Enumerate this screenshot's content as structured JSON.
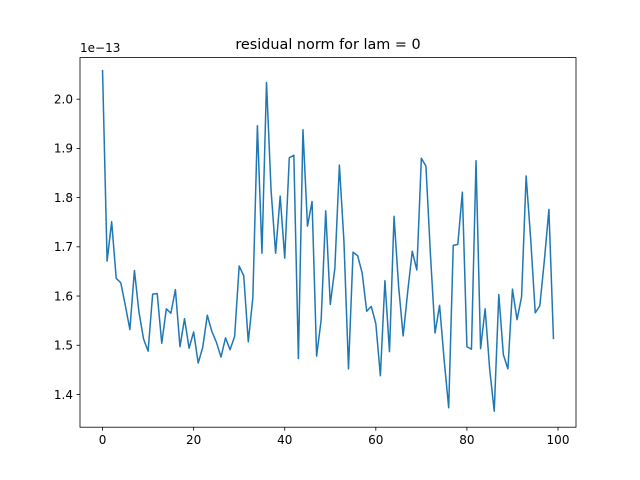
{
  "chart_data": {
    "type": "line",
    "title": "residual norm for lam = 0",
    "xlabel": "",
    "ylabel": "",
    "offset_label": "1e−13",
    "xlim": [
      -4.95,
      103.95
    ],
    "ylim": [
      1.3335,
      2.0845
    ],
    "xticks": [
      0,
      20,
      40,
      60,
      80,
      100
    ],
    "xtick_labels": [
      "0",
      "20",
      "40",
      "60",
      "80",
      "100"
    ],
    "yticks": [
      1.4,
      1.5,
      1.6,
      1.7,
      1.8,
      1.9,
      2.0
    ],
    "ytick_labels": [
      "1.4",
      "1.5",
      "1.6",
      "1.7",
      "1.8",
      "1.9",
      "2.0"
    ],
    "grid": false,
    "legend": "none",
    "series": [
      {
        "color": "#1f77b4",
        "x": [
          0,
          1,
          2,
          3,
          4,
          5,
          6,
          7,
          8,
          9,
          10,
          11,
          12,
          13,
          14,
          15,
          16,
          17,
          18,
          19,
          20,
          21,
          22,
          23,
          24,
          25,
          26,
          27,
          28,
          29,
          30,
          31,
          32,
          33,
          34,
          35,
          36,
          37,
          38,
          39,
          40,
          41,
          42,
          43,
          44,
          45,
          46,
          47,
          48,
          49,
          50,
          51,
          52,
          53,
          54,
          55,
          56,
          57,
          58,
          59,
          60,
          61,
          62,
          63,
          64,
          65,
          66,
          67,
          68,
          69,
          70,
          71,
          72,
          73,
          74,
          75,
          76,
          77,
          78,
          79,
          80,
          81,
          82,
          83,
          84,
          85,
          86,
          87,
          88,
          89,
          90,
          91,
          92,
          93,
          94,
          95,
          96,
          97,
          98,
          99
        ],
        "y": [
          2.058,
          1.671,
          1.751,
          1.636,
          1.627,
          1.581,
          1.532,
          1.652,
          1.567,
          1.513,
          1.488,
          1.604,
          1.605,
          1.504,
          1.574,
          1.565,
          1.613,
          1.497,
          1.554,
          1.494,
          1.527,
          1.464,
          1.496,
          1.561,
          1.528,
          1.506,
          1.476,
          1.515,
          1.491,
          1.518,
          1.661,
          1.641,
          1.507,
          1.597,
          1.946,
          1.687,
          2.034,
          1.815,
          1.687,
          1.803,
          1.677,
          1.881,
          1.886,
          1.473,
          1.938,
          1.742,
          1.792,
          1.478,
          1.552,
          1.773,
          1.583,
          1.656,
          1.866,
          1.711,
          1.452,
          1.689,
          1.682,
          1.647,
          1.569,
          1.579,
          1.544,
          1.438,
          1.631,
          1.487,
          1.762,
          1.62,
          1.519,
          1.609,
          1.691,
          1.653,
          1.88,
          1.864,
          1.683,
          1.525,
          1.581,
          1.47,
          1.373,
          1.703,
          1.705,
          1.811,
          1.497,
          1.492,
          1.875,
          1.493,
          1.574,
          1.451,
          1.366,
          1.603,
          1.481,
          1.452,
          1.614,
          1.552,
          1.598,
          1.844,
          1.716,
          1.566,
          1.58,
          1.672,
          1.776,
          1.514
        ]
      }
    ]
  }
}
